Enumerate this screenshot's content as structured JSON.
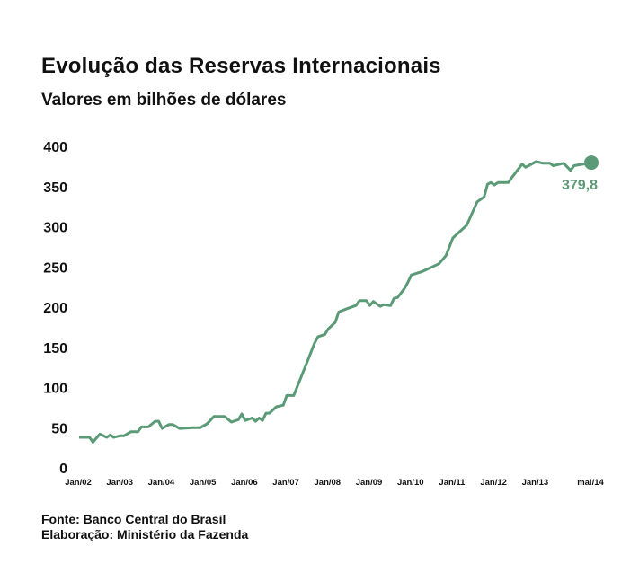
{
  "chart_data": {
    "type": "line",
    "title": "Evolução das Reservas Internacionais",
    "subtitle": "Valores em bilhões de dólares",
    "xlabel": "",
    "ylabel": "",
    "ylim": [
      0,
      400
    ],
    "yticks": [
      0,
      50,
      100,
      150,
      200,
      250,
      300,
      350,
      400
    ],
    "xticks": [
      {
        "date": "2002-01",
        "label": "Jan/02"
      },
      {
        "date": "2003-01",
        "label": "Jan/03"
      },
      {
        "date": "2004-01",
        "label": "Jan/04"
      },
      {
        "date": "2005-01",
        "label": "Jan/05"
      },
      {
        "date": "2006-01",
        "label": "Jan/06"
      },
      {
        "date": "2007-01",
        "label": "Jan/07"
      },
      {
        "date": "2008-01",
        "label": "Jan/08"
      },
      {
        "date": "2009-01",
        "label": "Jan/09"
      },
      {
        "date": "2010-01",
        "label": "Jan/10"
      },
      {
        "date": "2011-01",
        "label": "Jan/11"
      },
      {
        "date": "2012-01",
        "label": "Jan/12"
      },
      {
        "date": "2013-01",
        "label": "Jan/13"
      },
      {
        "date": "2014-05",
        "label": "mai/14"
      }
    ],
    "grid": false,
    "line_color": "#5b9a77",
    "series": [
      {
        "points": [
          [
            "2002-01",
            38
          ],
          [
            "2002-04",
            38
          ],
          [
            "2002-05",
            32
          ],
          [
            "2002-07",
            42
          ],
          [
            "2002-09",
            38
          ],
          [
            "2002-10",
            41
          ],
          [
            "2002-11",
            38
          ],
          [
            "2003-01",
            40
          ],
          [
            "2003-02",
            40
          ],
          [
            "2003-04",
            45
          ],
          [
            "2003-06",
            45
          ],
          [
            "2003-07",
            51
          ],
          [
            "2003-09",
            51
          ],
          [
            "2003-11",
            58
          ],
          [
            "2003-12",
            58
          ],
          [
            "2004-01",
            49
          ],
          [
            "2004-03",
            54
          ],
          [
            "2004-04",
            54
          ],
          [
            "2004-06",
            49
          ],
          [
            "2004-10",
            50
          ],
          [
            "2004-12",
            50
          ],
          [
            "2005-02",
            55
          ],
          [
            "2005-04",
            64
          ],
          [
            "2005-07",
            64
          ],
          [
            "2005-09",
            57
          ],
          [
            "2005-11",
            60
          ],
          [
            "2005-12",
            67
          ],
          [
            "2006-01",
            59
          ],
          [
            "2006-03",
            62
          ],
          [
            "2006-04",
            58
          ],
          [
            "2006-05",
            62
          ],
          [
            "2006-06",
            59
          ],
          [
            "2006-07",
            68
          ],
          [
            "2006-08",
            68
          ],
          [
            "2006-10",
            76
          ],
          [
            "2006-12",
            78
          ],
          [
            "2007-01",
            90
          ],
          [
            "2007-03",
            90
          ],
          [
            "2007-07",
            133
          ],
          [
            "2007-09",
            155
          ],
          [
            "2007-10",
            163
          ],
          [
            "2007-12",
            166
          ],
          [
            "2008-01",
            173
          ],
          [
            "2008-03",
            181
          ],
          [
            "2008-04",
            194
          ],
          [
            "2008-07",
            199
          ],
          [
            "2008-09",
            202
          ],
          [
            "2008-10",
            208
          ],
          [
            "2008-12",
            208
          ],
          [
            "2009-01",
            202
          ],
          [
            "2009-02",
            207
          ],
          [
            "2009-04",
            201
          ],
          [
            "2009-05",
            203
          ],
          [
            "2009-07",
            202
          ],
          [
            "2009-08",
            211
          ],
          [
            "2009-09",
            212
          ],
          [
            "2009-11",
            223
          ],
          [
            "2009-12",
            231
          ],
          [
            "2010-01",
            240
          ],
          [
            "2010-04",
            244
          ],
          [
            "2010-09",
            254
          ],
          [
            "2010-11",
            264
          ],
          [
            "2011-01",
            286
          ],
          [
            "2011-05",
            302
          ],
          [
            "2011-08",
            331
          ],
          [
            "2011-10",
            337
          ],
          [
            "2011-11",
            353
          ],
          [
            "2011-12",
            355
          ],
          [
            "2012-01",
            352
          ],
          [
            "2012-02",
            355
          ],
          [
            "2012-05",
            355
          ],
          [
            "2012-06",
            361
          ],
          [
            "2012-09",
            378
          ],
          [
            "2012-10",
            374
          ],
          [
            "2013-01",
            381
          ],
          [
            "2013-03",
            379
          ],
          [
            "2013-05",
            379
          ],
          [
            "2013-06",
            376
          ],
          [
            "2013-09",
            379
          ],
          [
            "2013-11",
            370
          ],
          [
            "2013-12",
            376
          ],
          [
            "2014-05",
            379.8
          ]
        ]
      }
    ],
    "annotation": {
      "date": "2014-05",
      "value": 379.8,
      "label": "379,8"
    }
  },
  "footer": {
    "source": "Fonte: Banco Central do Brasil",
    "credit": "Elaboração: Ministério da Fazenda"
  }
}
